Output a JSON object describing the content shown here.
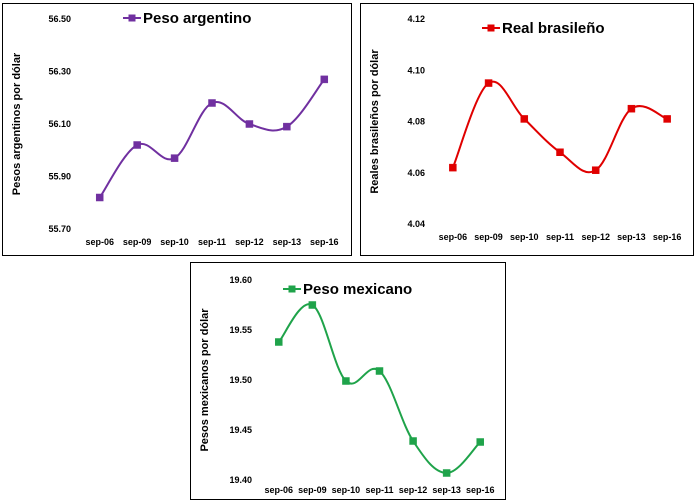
{
  "chart_data": [
    {
      "id": "ars",
      "type": "line",
      "categories": [
        "sep-06",
        "sep-09",
        "sep-10",
        "sep-11",
        "sep-12",
        "sep-13",
        "sep-16"
      ],
      "series": [
        {
          "name": "Peso argentino",
          "values": [
            55.82,
            56.02,
            55.97,
            56.18,
            56.1,
            56.09,
            56.27
          ]
        }
      ],
      "ylabel": "Pesos argentinos por dólar",
      "ylim": [
        55.7,
        56.5
      ],
      "yticks": [
        "55.70",
        "55.90",
        "56.10",
        "56.30",
        "56.50"
      ],
      "color": "#7030A0",
      "grid": false,
      "legend": "top"
    },
    {
      "id": "brl",
      "type": "line",
      "categories": [
        "sep-06",
        "sep-09",
        "sep-10",
        "sep-11",
        "sep-12",
        "sep-13",
        "sep-16"
      ],
      "series": [
        {
          "name": "Real brasileño",
          "values": [
            4.062,
            4.095,
            4.081,
            4.068,
            4.061,
            4.085,
            4.081
          ]
        }
      ],
      "ylabel": "Reales brasileños por dólar",
      "ylim": [
        4.04,
        4.12
      ],
      "yticks": [
        "4.04",
        "4.06",
        "4.08",
        "4.10",
        "4.12"
      ],
      "color": "#E00000",
      "grid": false,
      "legend": "top"
    },
    {
      "id": "mxn",
      "type": "line",
      "categories": [
        "sep-06",
        "sep-09",
        "sep-10",
        "sep-11",
        "sep-12",
        "sep-13",
        "sep-16"
      ],
      "series": [
        {
          "name": "Peso mexicano",
          "values": [
            19.538,
            19.575,
            19.499,
            19.509,
            19.439,
            19.407,
            19.438
          ]
        }
      ],
      "ylabel": "Pesos mexicanos por dólar",
      "ylim": [
        19.4,
        19.6
      ],
      "yticks": [
        "19.40",
        "19.45",
        "19.50",
        "19.55",
        "19.60"
      ],
      "color": "#1FA34A",
      "grid": false,
      "legend": "top"
    }
  ]
}
